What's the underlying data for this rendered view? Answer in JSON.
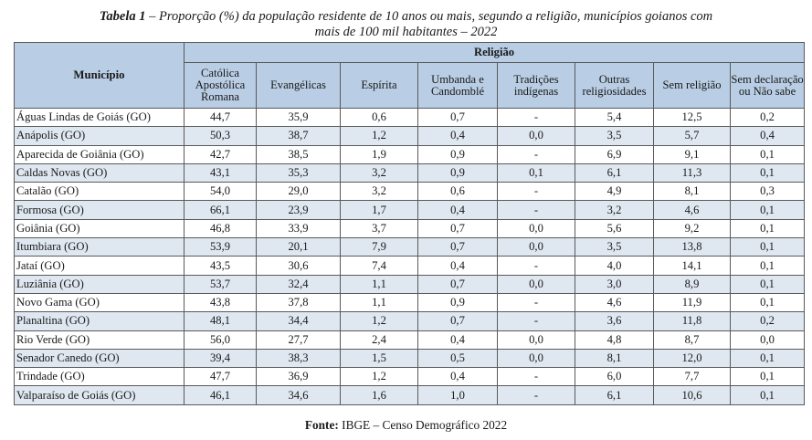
{
  "title": {
    "label": "Tabela 1",
    "text_line1": " – Proporção (%) da população residente de 10 anos ou mais, segundo a religião, municípios goianos com",
    "text_line2": "mais de 100 mil habitantes – 2022"
  },
  "table": {
    "municipio_header": "Município",
    "religiao_header": "Religião",
    "columns": [
      "Católica Apostólica Romana",
      "Evangélicas",
      "Espírita",
      "Umbanda e Candomblé",
      "Tradições indígenas",
      "Outras religiosidades",
      "Sem religião",
      "Sem declaração ou Não sabe"
    ],
    "rows": [
      {
        "municipio": "Águas Lindas de Goiás (GO)",
        "values": [
          "44,7",
          "35,9",
          "0,6",
          "0,7",
          "-",
          "5,4",
          "12,5",
          "0,2"
        ]
      },
      {
        "municipio": "Anápolis (GO)",
        "values": [
          "50,3",
          "38,7",
          "1,2",
          "0,4",
          "0,0",
          "3,5",
          "5,7",
          "0,4"
        ]
      },
      {
        "municipio": "Aparecida de Goiânia (GO)",
        "values": [
          "42,7",
          "38,5",
          "1,9",
          "0,9",
          "-",
          "6,9",
          "9,1",
          "0,1"
        ]
      },
      {
        "municipio": "Caldas Novas (GO)",
        "values": [
          "43,1",
          "35,3",
          "3,2",
          "0,9",
          "0,1",
          "6,1",
          "11,3",
          "0,1"
        ]
      },
      {
        "municipio": "Catalão (GO)",
        "values": [
          "54,0",
          "29,0",
          "3,2",
          "0,6",
          "-",
          "4,9",
          "8,1",
          "0,3"
        ]
      },
      {
        "municipio": "Formosa (GO)",
        "values": [
          "66,1",
          "23,9",
          "1,7",
          "0,4",
          "-",
          "3,2",
          "4,6",
          "0,1"
        ]
      },
      {
        "municipio": "Goiânia (GO)",
        "values": [
          "46,8",
          "33,9",
          "3,7",
          "0,7",
          "0,0",
          "5,6",
          "9,2",
          "0,1"
        ]
      },
      {
        "municipio": "Itumbiara (GO)",
        "values": [
          "53,9",
          "20,1",
          "7,9",
          "0,7",
          "0,0",
          "3,5",
          "13,8",
          "0,1"
        ]
      },
      {
        "municipio": "Jataí (GO)",
        "values": [
          "43,5",
          "30,6",
          "7,4",
          "0,4",
          "-",
          "4,0",
          "14,1",
          "0,1"
        ]
      },
      {
        "municipio": "Luziânia (GO)",
        "values": [
          "53,7",
          "32,4",
          "1,1",
          "0,7",
          "0,0",
          "3,0",
          "8,9",
          "0,1"
        ]
      },
      {
        "municipio": "Novo Gama (GO)",
        "values": [
          "43,8",
          "37,8",
          "1,1",
          "0,9",
          "-",
          "4,6",
          "11,9",
          "0,1"
        ]
      },
      {
        "municipio": "Planaltina (GO)",
        "values": [
          "48,1",
          "34,4",
          "1,2",
          "0,7",
          "-",
          "3,6",
          "11,8",
          "0,2"
        ]
      },
      {
        "municipio": "Rio Verde (GO)",
        "values": [
          "56,0",
          "27,7",
          "2,4",
          "0,4",
          "0,0",
          "4,8",
          "8,7",
          "0,0"
        ]
      },
      {
        "municipio": "Senador Canedo (GO)",
        "values": [
          "39,4",
          "38,3",
          "1,5",
          "0,5",
          "0,0",
          "8,1",
          "12,0",
          "0,1"
        ]
      },
      {
        "municipio": "Trindade (GO)",
        "values": [
          "47,7",
          "36,9",
          "1,2",
          "0,4",
          "-",
          "6,0",
          "7,7",
          "0,1"
        ]
      },
      {
        "municipio": "Valparaíso de Goiás (GO)",
        "values": [
          "46,1",
          "34,6",
          "1,6",
          "1,0",
          "-",
          "6,1",
          "10,6",
          "0,1"
        ]
      }
    ]
  },
  "source": {
    "label": "Fonte:",
    "text": " IBGE – Censo Demográfico 2022"
  }
}
